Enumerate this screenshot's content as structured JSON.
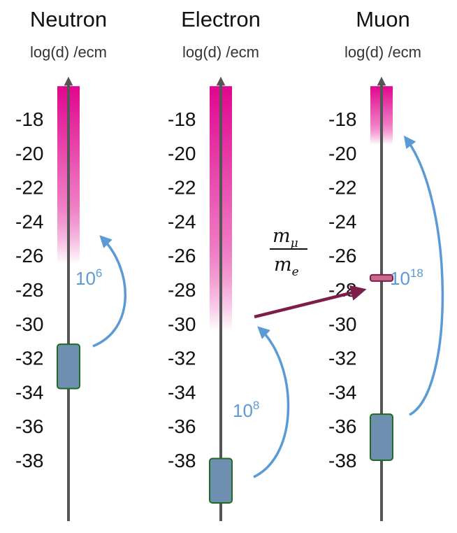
{
  "columns": [
    {
      "title": "Neutron",
      "unit": "log(d) /ecm",
      "ticks": [
        "-18",
        "-20",
        "-22",
        "-24",
        "-26",
        "-28",
        "-30",
        "-32",
        "-34",
        "-36",
        "-38"
      ],
      "excluded_range": [
        -16,
        -26
      ],
      "sensitivity_box": [
        -31.2,
        -33.8
      ],
      "improvement_label_base": "10",
      "improvement_label_exp": "6"
    },
    {
      "title": "Electron",
      "unit": "log(d) /ecm",
      "ticks": [
        "-18",
        "-20",
        "-22",
        "-24",
        "-26",
        "-28",
        "-30",
        "-32",
        "-34",
        "-36",
        "-38"
      ],
      "excluded_range": [
        -16,
        -30
      ],
      "sensitivity_box": [
        -37.9,
        -40.5
      ],
      "improvement_label_base": "10",
      "improvement_label_exp": "8"
    },
    {
      "title": "Muon",
      "unit": "log(d) /ecm",
      "ticks": [
        "-18",
        "-20",
        "-22",
        "-24",
        "-26",
        "-28",
        "-30",
        "-32",
        "-34",
        "-36",
        "-38"
      ],
      "excluded_range": [
        -16,
        -19
      ],
      "sensitivity_box": [
        -35.3,
        -38
      ],
      "scaled_marker": -27.3,
      "improvement_label_base": "10",
      "improvement_label_exp": "18"
    }
  ],
  "mass_ratio": {
    "numerator": "m",
    "numerator_sub": "μ",
    "denominator": "m",
    "denominator_sub": "e"
  },
  "colors": {
    "excluded_top": "#e0068f",
    "excluded_bottom": "#ffffff",
    "axis": "#555555",
    "box_fill": "#6f8fb0",
    "box_stroke": "#1f6b1f",
    "curve": "#5b9bd5",
    "ratio_arrow": "#7b1e4a",
    "marker_fill": "#c86a8c",
    "marker_stroke": "#7b1e4a"
  },
  "icons": {
    "axis_head": "arrow-up-icon",
    "curve_head": "arrowhead-icon"
  }
}
